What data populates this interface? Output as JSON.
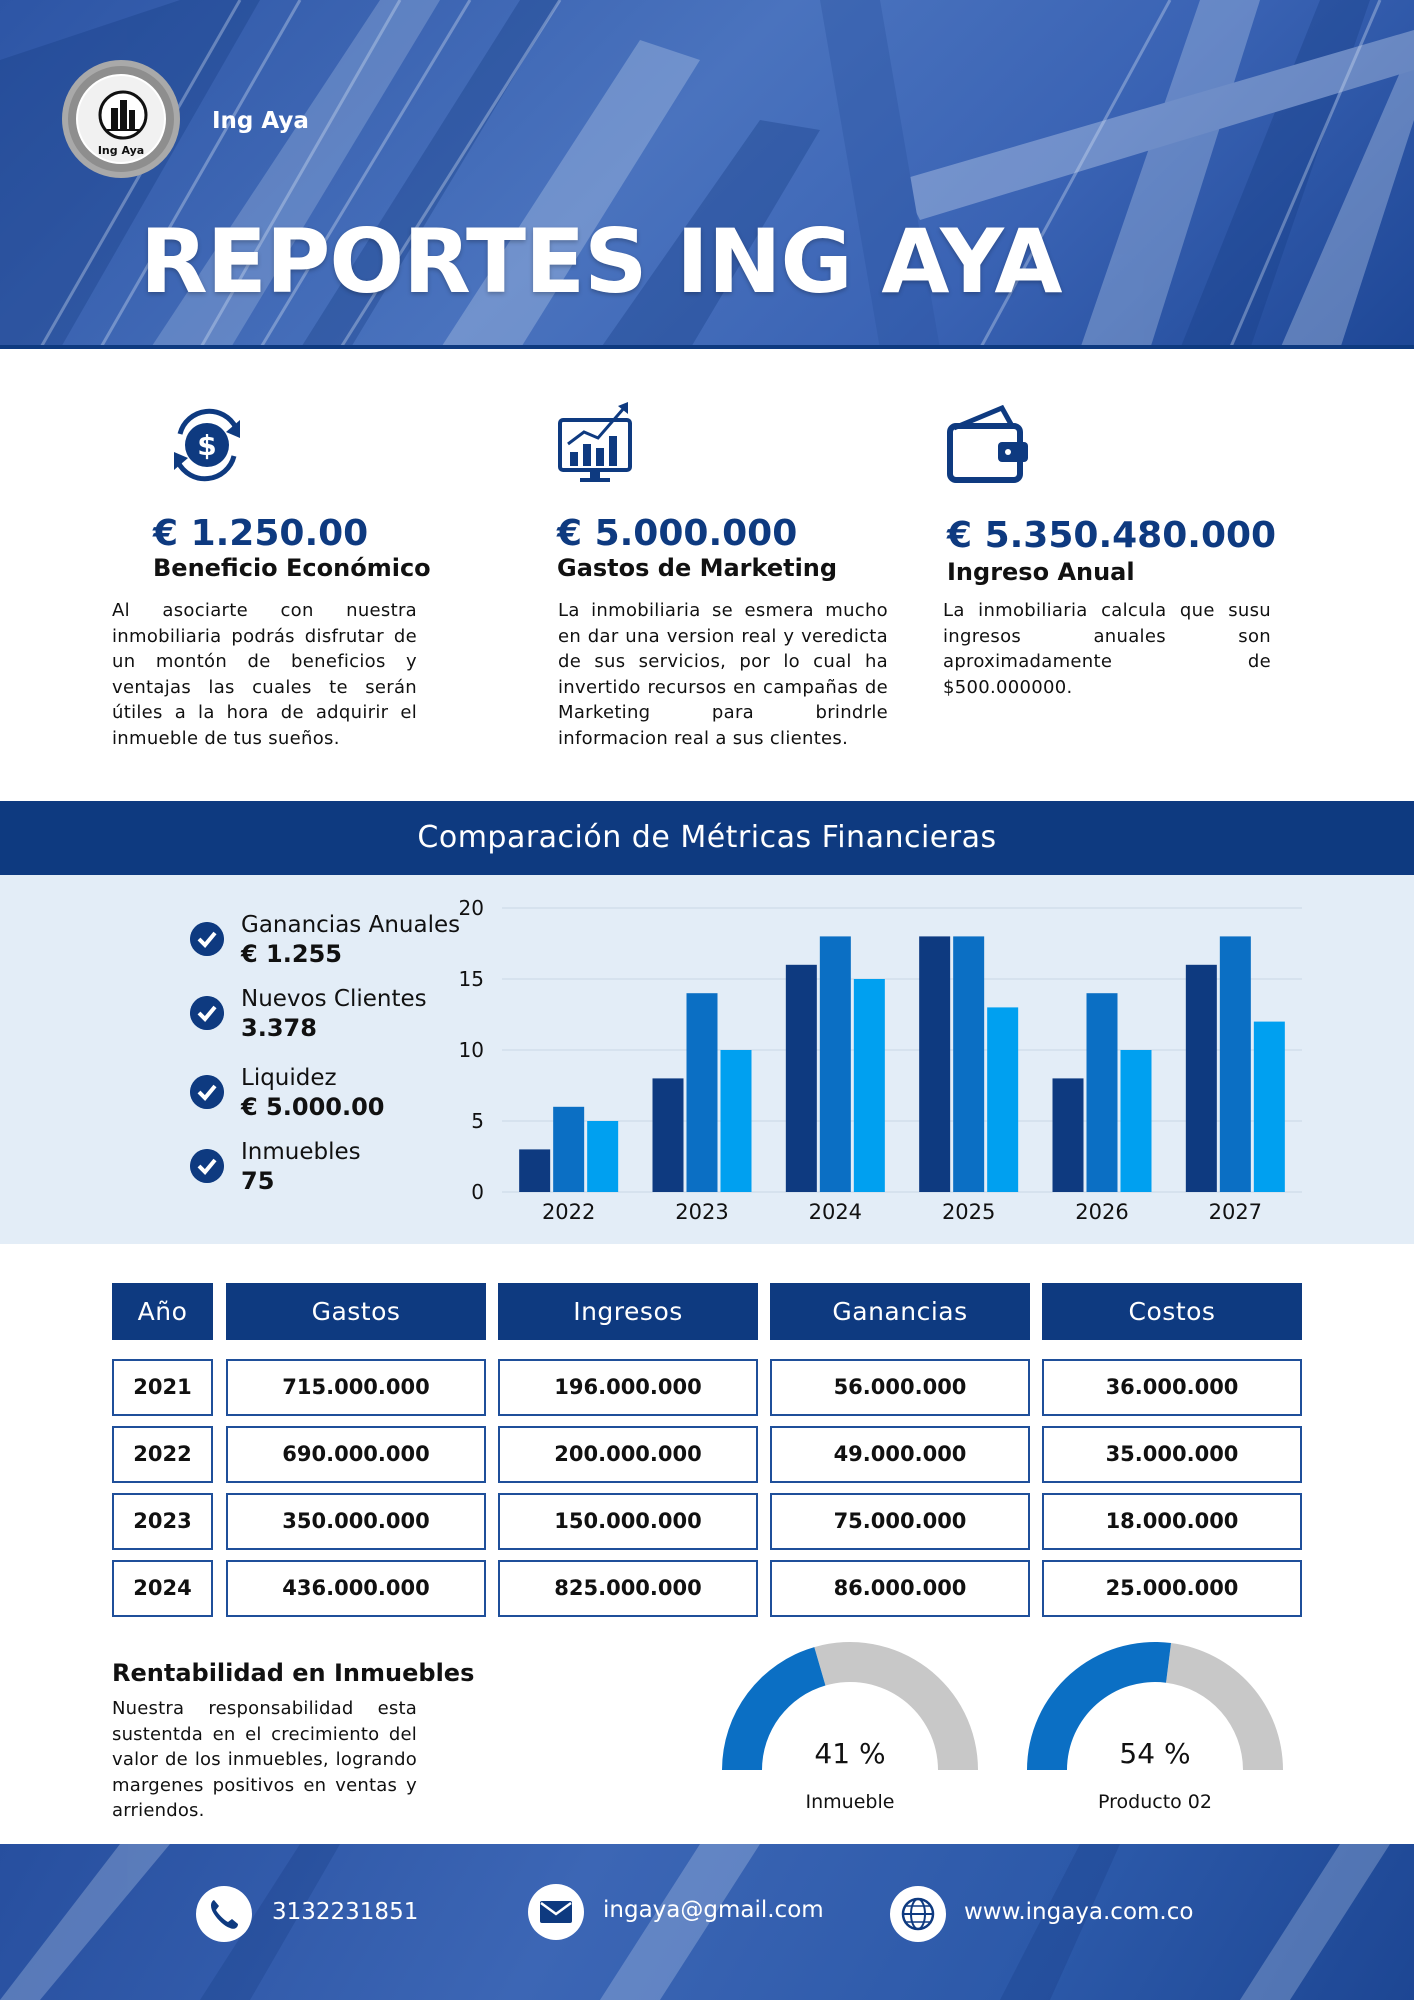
{
  "header": {
    "logo_text": "Ing Aya",
    "brand": "Ing Aya",
    "title": "REPORTES ING AYA"
  },
  "stats": [
    {
      "icon": "dollar-exchange-icon",
      "value": "€ 1.250.00",
      "label": "Beneficio Económico",
      "description": "Al asociarte con nuestra inmobiliaria podrás disfrutar de un montón de beneficios y ventajas las cuales te serán útiles a la hora de adquirir el inmueble de tus sueños."
    },
    {
      "icon": "chart-monitor-icon",
      "value": "€ 5.000.000",
      "label": "Gastos de Marketing",
      "description": "La inmobiliaria se esmera mucho en dar una version real y veredicta de sus servicios, por lo cual ha invertido recursos en campañas de Marketing para brindrle informacion real a sus clientes."
    },
    {
      "icon": "wallet-icon",
      "value": "€ 5.350.480.000",
      "label": "Ingreso Anual",
      "description": "La inmobiliaria calcula que susu ingresos anuales son aproximadamente de $500.000000."
    }
  ],
  "comparison": {
    "title": "Comparación de Métricas Financieras",
    "metrics": [
      {
        "label": "Ganancias Anuales",
        "value": "€ 1.255"
      },
      {
        "label": "Nuevos Clientes",
        "value": "3.378"
      },
      {
        "label": "Liquidez",
        "value": "€ 5.000.00"
      },
      {
        "label": "Inmuebles",
        "value": "75"
      }
    ]
  },
  "chart_data": {
    "type": "bar",
    "categories": [
      "2022",
      "2023",
      "2024",
      "2025",
      "2026",
      "2027"
    ],
    "series": [
      {
        "values": [
          3,
          8,
          16,
          18,
          8,
          16
        ],
        "color": "#0e3a80"
      },
      {
        "values": [
          6,
          14,
          18,
          18,
          14,
          18
        ],
        "color": "#0b6fc4"
      },
      {
        "values": [
          5,
          10,
          15,
          13,
          10,
          12
        ],
        "color": "#00a0f0"
      }
    ],
    "ylim": [
      0,
      20
    ],
    "yticks": [
      0,
      5,
      10,
      15,
      20
    ],
    "grid": true,
    "title": "",
    "xlabel": "",
    "ylabel": ""
  },
  "table": {
    "headers": [
      "Año",
      "Gastos",
      "Ingresos",
      "Ganancias",
      "Costos"
    ],
    "rows": [
      [
        "2021",
        "715.000.000",
        "196.000.000",
        "56.000.000",
        "36.000.000"
      ],
      [
        "2022",
        "690.000.000",
        "200.000.000",
        "49.000.000",
        "35.000.000"
      ],
      [
        "2023",
        "350.000.000",
        "150.000.000",
        "75.000.000",
        "18.000.000"
      ],
      [
        "2024",
        "436.000.000",
        "825.000.000",
        "86.000.000",
        "25.000.000"
      ]
    ]
  },
  "rentabilidad": {
    "title": "Rentabilidad en Inmuebles",
    "description": "Nuestra responsabilidad esta sustentda en el crecimiento del valor de los inmuebles, logrando margenes positivos en ventas y arriendos.",
    "gauges": [
      {
        "percent_text": "41 %",
        "label": "Inmueble",
        "fraction": 0.41
      },
      {
        "percent_text": "54 %",
        "label": "Producto 02",
        "fraction": 0.54
      }
    ]
  },
  "footer": {
    "phone": "3132231851",
    "email": "ingaya@gmail.com",
    "website": "www.ingaya.com.co"
  },
  "colors": {
    "primary": "#0e3a80",
    "mid_blue": "#0b6fc4",
    "light_blue": "#00a0f0",
    "band_bg": "#e3edf7",
    "gauge_track": "#c8c8c8"
  }
}
